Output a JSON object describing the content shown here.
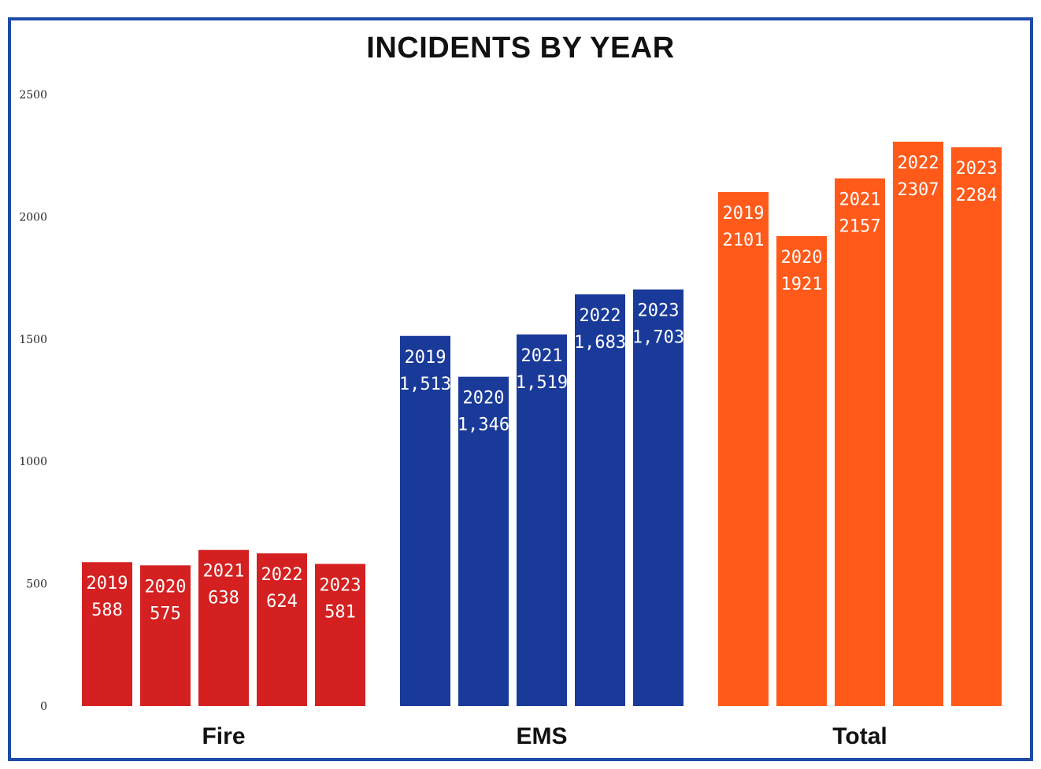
{
  "chart_data": {
    "type": "bar",
    "title": "INCIDENTS BY YEAR",
    "ylim": [
      0,
      2500
    ],
    "yticks": [
      0,
      500,
      1000,
      1500,
      2000,
      2500
    ],
    "ytick_labels": [
      "0",
      "500",
      "1000",
      "1500",
      "2000",
      "2500"
    ],
    "grid": false,
    "legend": "none",
    "groups": [
      {
        "name": "Fire",
        "color": "#d42020",
        "bars": [
          {
            "year": "2019",
            "value": 588,
            "label": "588"
          },
          {
            "year": "2020",
            "value": 575,
            "label": "575"
          },
          {
            "year": "2021",
            "value": 638,
            "label": "638"
          },
          {
            "year": "2022",
            "value": 624,
            "label": "624"
          },
          {
            "year": "2023",
            "value": 581,
            "label": "581"
          }
        ]
      },
      {
        "name": "EMS",
        "color": "#1a3a9a",
        "bars": [
          {
            "year": "2019",
            "value": 1513,
            "label": "1,513"
          },
          {
            "year": "2020",
            "value": 1346,
            "label": "1,346"
          },
          {
            "year": "2021",
            "value": 1519,
            "label": "1,519"
          },
          {
            "year": "2022",
            "value": 1683,
            "label": "1,683"
          },
          {
            "year": "2023",
            "value": 1703,
            "label": "1,703"
          }
        ]
      },
      {
        "name": "Total",
        "color": "#ff5a1a",
        "bars": [
          {
            "year": "2019",
            "value": 2101,
            "label": "2101"
          },
          {
            "year": "2020",
            "value": 1921,
            "label": "1921"
          },
          {
            "year": "2021",
            "value": 2157,
            "label": "2157"
          },
          {
            "year": "2022",
            "value": 2307,
            "label": "2307"
          },
          {
            "year": "2023",
            "value": 2284,
            "label": "2284"
          }
        ]
      }
    ]
  }
}
